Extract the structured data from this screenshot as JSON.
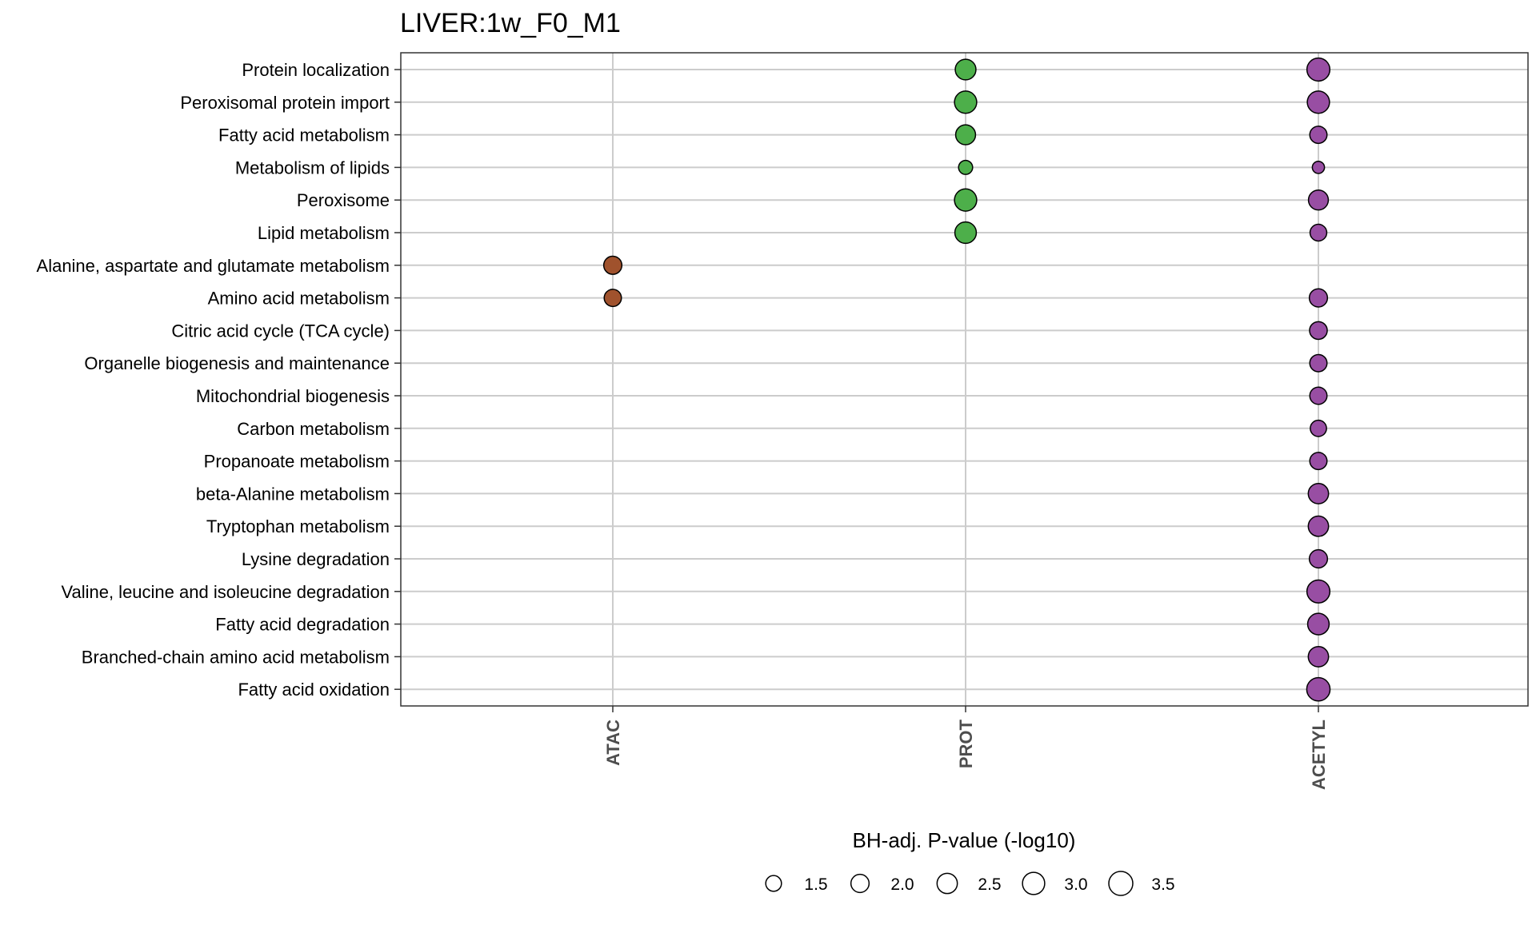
{
  "chart_data": {
    "type": "scatter",
    "title": "LIVER:1w_F0_M1",
    "categories": [
      "ATAC",
      "PROT",
      "ACETYL"
    ],
    "pathways": [
      "Protein localization",
      "Peroxisomal protein import",
      "Fatty acid metabolism",
      "Metabolism of lipids",
      "Peroxisome",
      "Lipid metabolism",
      "Alanine, aspartate and glutamate metabolism",
      "Amino acid metabolism",
      "Citric acid cycle (TCA cycle)",
      "Organelle biogenesis and maintenance",
      "Mitochondrial biogenesis",
      "Carbon metabolism",
      "Propanoate metabolism",
      "beta-Alanine metabolism",
      "Tryptophan metabolism",
      "Lysine degradation",
      "Valine, leucine and isoleucine degradation",
      "Fatty acid degradation",
      "Branched-chain amino acid metabolism",
      "Fatty acid oxidation"
    ],
    "series": [
      {
        "category": "ATAC",
        "color": "#A0522D",
        "points": [
          {
            "pathway": "Alanine, aspartate and glutamate metabolism",
            "value": 2.0
          },
          {
            "pathway": "Amino acid metabolism",
            "value": 1.8
          }
        ]
      },
      {
        "category": "PROT",
        "color": "#4DAF4A",
        "points": [
          {
            "pathway": "Protein localization",
            "value": 2.6
          },
          {
            "pathway": "Peroxisomal protein import",
            "value": 3.0
          },
          {
            "pathway": "Fatty acid metabolism",
            "value": 2.4
          },
          {
            "pathway": "Metabolism of lipids",
            "value": 1.2
          },
          {
            "pathway": "Peroxisome",
            "value": 3.0
          },
          {
            "pathway": "Lipid metabolism",
            "value": 2.8
          }
        ]
      },
      {
        "category": "ACETYL",
        "color": "#984EA3",
        "points": [
          {
            "pathway": "Protein localization",
            "value": 3.2
          },
          {
            "pathway": "Peroxisomal protein import",
            "value": 3.0
          },
          {
            "pathway": "Fatty acid metabolism",
            "value": 1.8
          },
          {
            "pathway": "Metabolism of lipids",
            "value": 0.9
          },
          {
            "pathway": "Peroxisome",
            "value": 2.4
          },
          {
            "pathway": "Lipid metabolism",
            "value": 1.7
          },
          {
            "pathway": "Amino acid metabolism",
            "value": 2.0
          },
          {
            "pathway": "Citric acid cycle (TCA cycle)",
            "value": 1.9
          },
          {
            "pathway": "Organelle biogenesis and maintenance",
            "value": 1.8
          },
          {
            "pathway": "Mitochondrial biogenesis",
            "value": 1.8
          },
          {
            "pathway": "Carbon metabolism",
            "value": 1.6
          },
          {
            "pathway": "Propanoate metabolism",
            "value": 1.8
          },
          {
            "pathway": "beta-Alanine metabolism",
            "value": 2.5
          },
          {
            "pathway": "Tryptophan metabolism",
            "value": 2.5
          },
          {
            "pathway": "Lysine degradation",
            "value": 2.0
          },
          {
            "pathway": "Valine, leucine and isoleucine degradation",
            "value": 3.2
          },
          {
            "pathway": "Fatty acid degradation",
            "value": 2.8
          },
          {
            "pathway": "Branched-chain amino acid metabolism",
            "value": 2.5
          },
          {
            "pathway": "Fatty acid oxidation",
            "value": 3.3
          }
        ]
      }
    ],
    "size_legend": {
      "title": "BH-adj. P-value (-log10)",
      "breaks": [
        1.5,
        2.0,
        2.5,
        3.0,
        3.5
      ],
      "labels": [
        "1.5",
        "2.0",
        "2.5",
        "3.0",
        "3.5"
      ],
      "position": "bottom"
    },
    "xlabel": "",
    "ylabel": "",
    "grid": true
  }
}
